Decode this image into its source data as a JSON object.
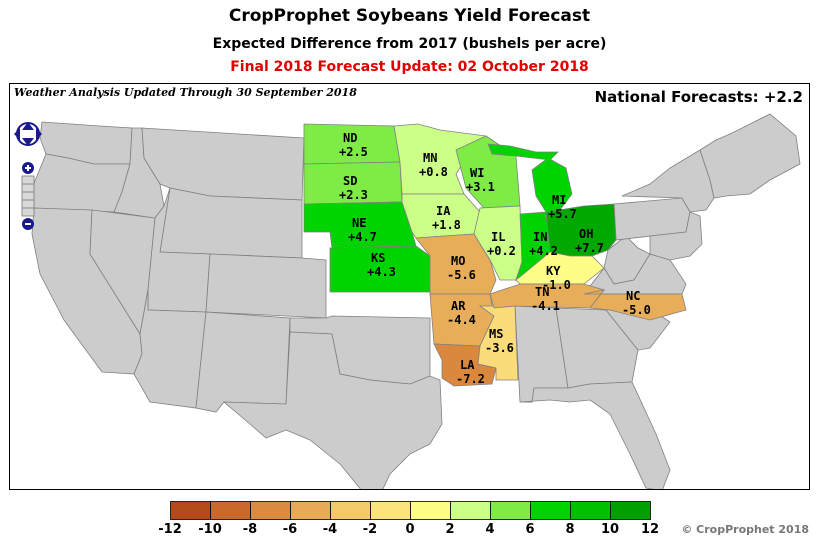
{
  "header": {
    "title": "CropProphet Soybeans Yield Forecast",
    "subtitle": "Expected Difference from 2017 (bushels per acre)",
    "update": "Final 2018 Forecast Update: 02 October 2018"
  },
  "map": {
    "weather_note": "Weather Analysis Updated Through 30 September 2018",
    "national_forecast": "National Forecasts: +2.2",
    "controls": [
      "pan-icon",
      "zoom-in-icon",
      "zoom-slider",
      "zoom-out-icon"
    ],
    "states": [
      {
        "abbr": "ND",
        "value": "+2.5"
      },
      {
        "abbr": "SD",
        "value": "+2.3"
      },
      {
        "abbr": "NE",
        "value": "+4.7"
      },
      {
        "abbr": "KS",
        "value": "+4.3"
      },
      {
        "abbr": "MN",
        "value": "+0.8"
      },
      {
        "abbr": "IA",
        "value": "+1.8"
      },
      {
        "abbr": "MO",
        "value": "-5.6"
      },
      {
        "abbr": "AR",
        "value": "-4.4"
      },
      {
        "abbr": "LA",
        "value": "-7.2"
      },
      {
        "abbr": "MS",
        "value": "-3.6"
      },
      {
        "abbr": "WI",
        "value": "+3.1"
      },
      {
        "abbr": "IL",
        "value": "+0.2"
      },
      {
        "abbr": "IN",
        "value": "+4.2"
      },
      {
        "abbr": "MI",
        "value": "+5.7"
      },
      {
        "abbr": "OH",
        "value": "+7.7"
      },
      {
        "abbr": "KY",
        "value": "-1.0"
      },
      {
        "abbr": "TN",
        "value": "-4.1"
      },
      {
        "abbr": "NC",
        "value": "-5.0"
      }
    ],
    "colors": {
      "ND": "#7eeb46",
      "SD": "#7eeb46",
      "NE": "#00d400",
      "KS": "#00d400",
      "MN": "#ccff88",
      "IA": "#ccff88",
      "MO": "#e8ad58",
      "AR": "#e8ad58",
      "LA": "#d9883e",
      "MS": "#fbdb7a",
      "WI": "#7eeb46",
      "IL": "#ccff88",
      "IN": "#00d400",
      "MI": "#00d400",
      "OH": "#00a800",
      "KY": "#fdfd88",
      "TN": "#e8ad58",
      "NC": "#e8ad58",
      "background_state": "#cccccc",
      "border": "#808080"
    }
  },
  "legend": {
    "ticks": [
      "-12",
      "-10",
      "-8",
      "-6",
      "-4",
      "-2",
      "0",
      "2",
      "4",
      "6",
      "8",
      "10",
      "12"
    ],
    "colors": [
      "#b44a1a",
      "#c96a2c",
      "#db8a40",
      "#e9aa58",
      "#f3c96a",
      "#fbe47c",
      "#fdfd88",
      "#ccff88",
      "#7eeb46",
      "#00d400",
      "#00c000",
      "#00a000"
    ]
  },
  "footer": {
    "copyright": "© CropProphet 2018"
  }
}
